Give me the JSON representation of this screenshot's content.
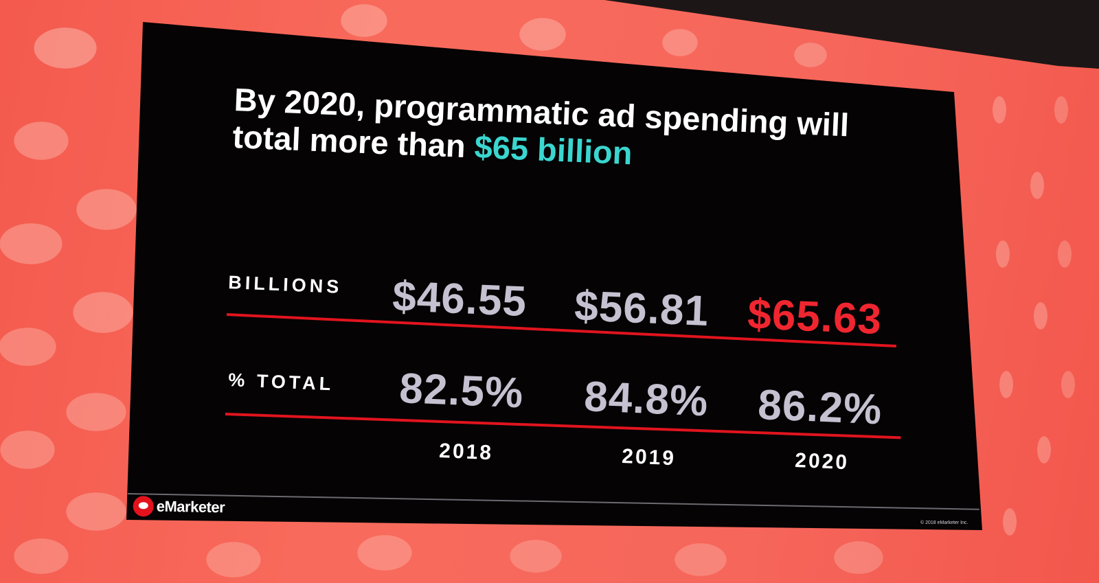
{
  "slide": {
    "title_line1": "By 2020, programmatic ad spending will",
    "title_line2_prefix": "total more than ",
    "title_highlight": "$65 billion",
    "rows": [
      {
        "label": "BILLIONS",
        "values": [
          "$46.55",
          "$56.81",
          "$65.63"
        ]
      },
      {
        "label": "% TOTAL",
        "values": [
          "82.5%",
          "84.8%",
          "86.2%"
        ]
      }
    ],
    "years": [
      "2018",
      "2019",
      "2020"
    ],
    "logo_text": "eMarketer",
    "copyright": "© 2018 eMarketer Inc."
  },
  "colors": {
    "highlight": "#3ad6d0",
    "accent_value": "#ef2630",
    "rule": "#e1141e",
    "backdrop": "#f6665b"
  }
}
